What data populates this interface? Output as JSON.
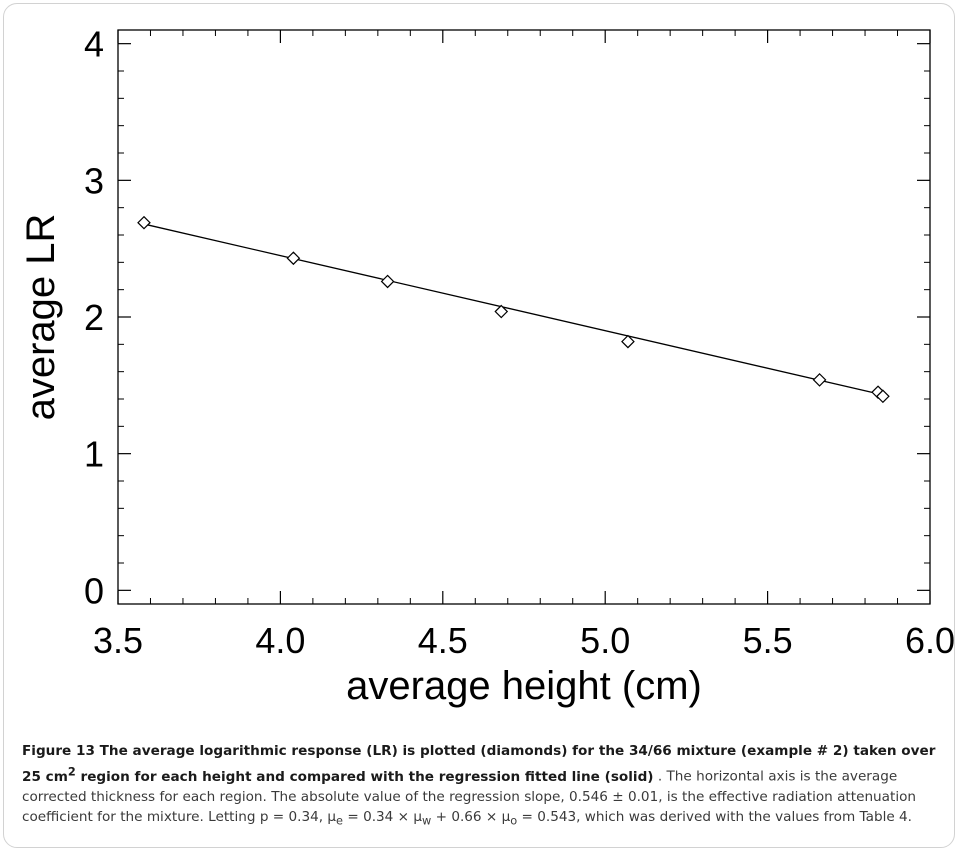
{
  "chart_data": {
    "type": "scatter",
    "xlabel": "average height (cm)",
    "ylabel": "average LR",
    "xlim": [
      3.5,
      6.0
    ],
    "ylim": [
      -0.1,
      4.1
    ],
    "xticks": [
      "3.5",
      "4.0",
      "4.5",
      "5.0",
      "5.5",
      "6.0"
    ],
    "yticks": [
      "0",
      "1",
      "2",
      "3",
      "4"
    ],
    "grid": false,
    "series": [
      {
        "mode": "markers",
        "marker": "diamond",
        "x": [
          3.58,
          4.04,
          4.33,
          4.68,
          5.07,
          5.66,
          5.84,
          5.855
        ],
        "y": [
          2.69,
          2.43,
          2.26,
          2.04,
          1.82,
          1.54,
          1.45,
          1.42
        ]
      },
      {
        "mode": "line",
        "x": [
          3.58,
          5.855
        ],
        "y": [
          2.68,
          1.43
        ]
      }
    ]
  },
  "caption": {
    "bold_pre": "Figure 13 The average logarithmic response (LR) is plotted (diamonds) for the 34/66 mixture (example # 2) taken over 25 cm",
    "bold_sup": "2",
    "bold_post": " region for each height and compared with the regression fitted line (solid)",
    "text_1": " . The horizontal axis is the average corrected thickness for each region. The absolute value of the regression slope, 0.546 ± 0.01, is the effective radiation attenuation coefficient for the mixture. Letting p = 0.34, μ",
    "sub_e": "e",
    "text_2": " = 0.34 × μ",
    "sub_w": "w",
    "text_3": " + 0.66 × μ",
    "sub_o": "o",
    "text_4": " = 0.543, which was derived with the values from Table 4."
  }
}
